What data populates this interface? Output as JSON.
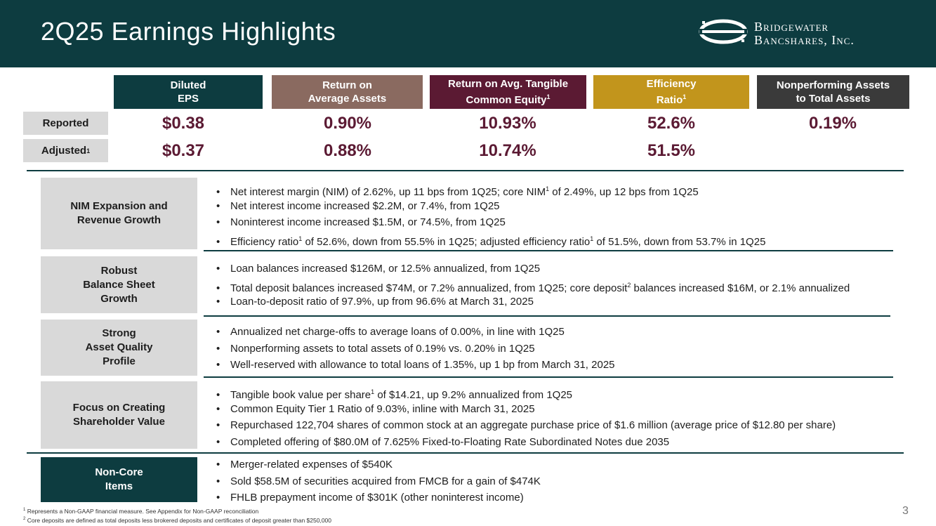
{
  "header": {
    "title": "2Q25 Earnings Highlights",
    "logo_line1": "Bridgewater",
    "logo_line2": "Bancshares, Inc."
  },
  "colors": {
    "header_bg": "#0d3c40",
    "eps": "#0d3c40",
    "roaa": "#8a6a60",
    "rote": "#5b1a33",
    "eff": "#c2951c",
    "npa": "#3a3a3a",
    "value_text": "#5b1a33"
  },
  "metrics": {
    "headers": [
      {
        "line1": "Diluted",
        "line2": "EPS",
        "sup": ""
      },
      {
        "line1": "Return on",
        "line2": "Average Assets",
        "sup": ""
      },
      {
        "line1": "Return on Avg. Tangible",
        "line2": "Common Equity",
        "sup": "1"
      },
      {
        "line1": "Efficiency",
        "line2": "Ratio",
        "sup": "1"
      },
      {
        "line1": "Nonperforming Assets",
        "line2": "to Total Assets",
        "sup": ""
      }
    ],
    "row_labels": {
      "reported": "Reported",
      "adjusted": "Adjusted",
      "adjusted_sup": "1"
    },
    "reported": [
      "$0.38",
      "0.90%",
      "10.93%",
      "52.6%",
      "0.19%"
    ],
    "adjusted": [
      "$0.37",
      "0.88%",
      "10.74%",
      "51.5%"
    ]
  },
  "sections": [
    {
      "title": [
        "NIM Expansion and",
        "Revenue Growth"
      ],
      "bullets": [
        [
          "Net interest margin (NIM) of 2.62%, up 11 bps from 1Q25; core NIM",
          "1",
          " of 2.49%, up 12 bps from 1Q25"
        ],
        [
          "Net interest income increased $2.2M, or 7.4%, from 1Q25"
        ],
        [
          "Noninterest income increased $1.5M, or 74.5%, from 1Q25"
        ],
        [
          "Efficiency ratio",
          "1",
          " of 52.6%, down from 55.5% in 1Q25; adjusted efficiency ratio",
          "1",
          " of 51.5%, down from 53.7% in 1Q25"
        ]
      ]
    },
    {
      "title": [
        "Robust",
        "Balance Sheet",
        "Growth"
      ],
      "bullets": [
        [
          "Loan balances increased $126M, or 12.5% annualized, from 1Q25"
        ],
        [
          "Total deposit balances increased $74M, or 7.2% annualized, from 1Q25; core deposit",
          "2",
          " balances increased $16M, or 2.1% annualized"
        ],
        [
          "Loan-to-deposit ratio of 97.9%, up from 96.6% at March 31, 2025"
        ]
      ]
    },
    {
      "title": [
        "Strong",
        "Asset Quality",
        "Profile"
      ],
      "bullets": [
        [
          "Annualized net charge-offs to average loans of 0.00%, in line with 1Q25"
        ],
        [
          "Nonperforming assets to total assets of 0.19% vs. 0.20% in 1Q25"
        ],
        [
          "Well-reserved with allowance to total loans of 1.35%, up 1 bp from March 31, 2025"
        ]
      ]
    },
    {
      "title": [
        "Focus on Creating",
        "Shareholder Value"
      ],
      "bullets": [
        [
          "Tangible book value per share",
          "1",
          " of $14.21, up 9.2% annualized from 1Q25"
        ],
        [
          "Common Equity Tier 1 Ratio of 9.03%, inline with March 31, 2025"
        ],
        [
          "Repurchased 122,704 shares of common stock at an aggregate purchase price of $1.6 million (average price of $12.80 per share)"
        ],
        [
          "Completed offering of $80.0M of 7.625% Fixed-to-Floating Rate Subordinated Notes due 2035"
        ]
      ]
    },
    {
      "title": [
        "Non-Core",
        "Items"
      ],
      "bullets": [
        [
          "Merger-related expenses of $540K"
        ],
        [
          "Sold $58.5M of securities acquired from FMCB for a gain of $474K"
        ],
        [
          "FHLB prepayment income of $301K (other noninterest income)"
        ]
      ]
    }
  ],
  "footnotes": [
    {
      "mark": "1",
      "text": " Represents a Non-GAAP financial measure. See Appendix for Non-GAAP reconciliation"
    },
    {
      "mark": "2",
      "text": " Core deposits are defined as total deposits less brokered deposits and certificates of deposit greater than $250,000"
    }
  ],
  "page_number": "3"
}
